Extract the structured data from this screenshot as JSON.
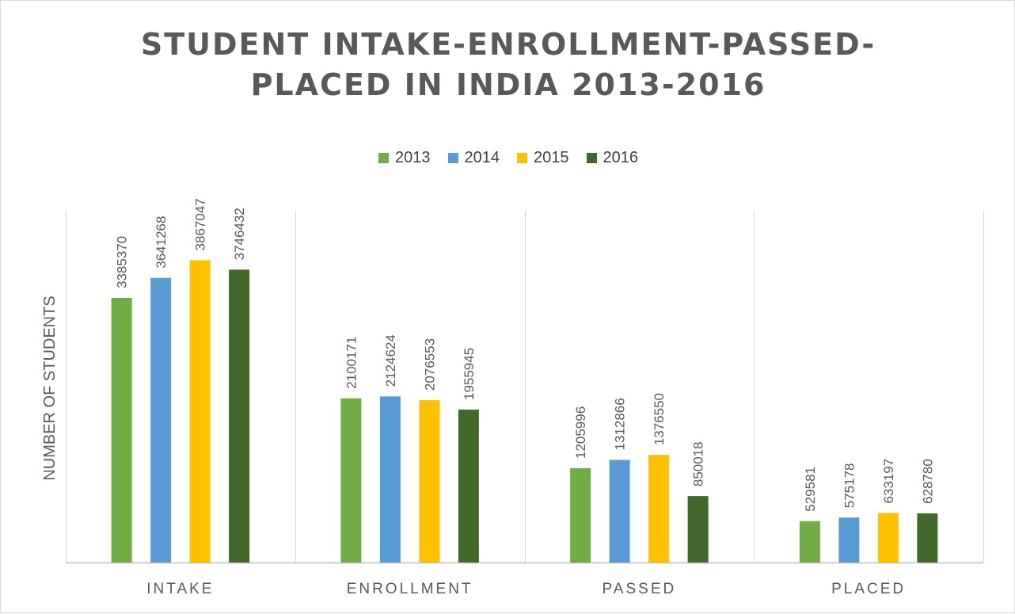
{
  "chart_data": {
    "type": "bar",
    "title_lines": [
      "STUDENT INTAKE-ENROLLMENT-PASSED-",
      "PLACED IN INDIA 2013-2016"
    ],
    "xlabel": "",
    "ylabel": "NUMBER OF STUDENTS",
    "categories": [
      "INTAKE",
      "ENROLLMENT",
      "PASSED",
      "PLACED"
    ],
    "ylim": [
      0,
      4500000
    ],
    "legend_position": "top",
    "grid": "vertical category separators",
    "series": [
      {
        "name": "2013",
        "color": "#70ad47",
        "values": [
          3385370,
          2100171,
          1205996,
          529581
        ]
      },
      {
        "name": "2014",
        "color": "#5b9bd5",
        "values": [
          3641268,
          2124624,
          1312866,
          575178
        ]
      },
      {
        "name": "2015",
        "color": "#ffc000",
        "values": [
          3867047,
          2076553,
          1376550,
          633197
        ]
      },
      {
        "name": "2016",
        "color": "#43682b",
        "values": [
          3746432,
          1955945,
          850018,
          628780
        ]
      }
    ]
  }
}
